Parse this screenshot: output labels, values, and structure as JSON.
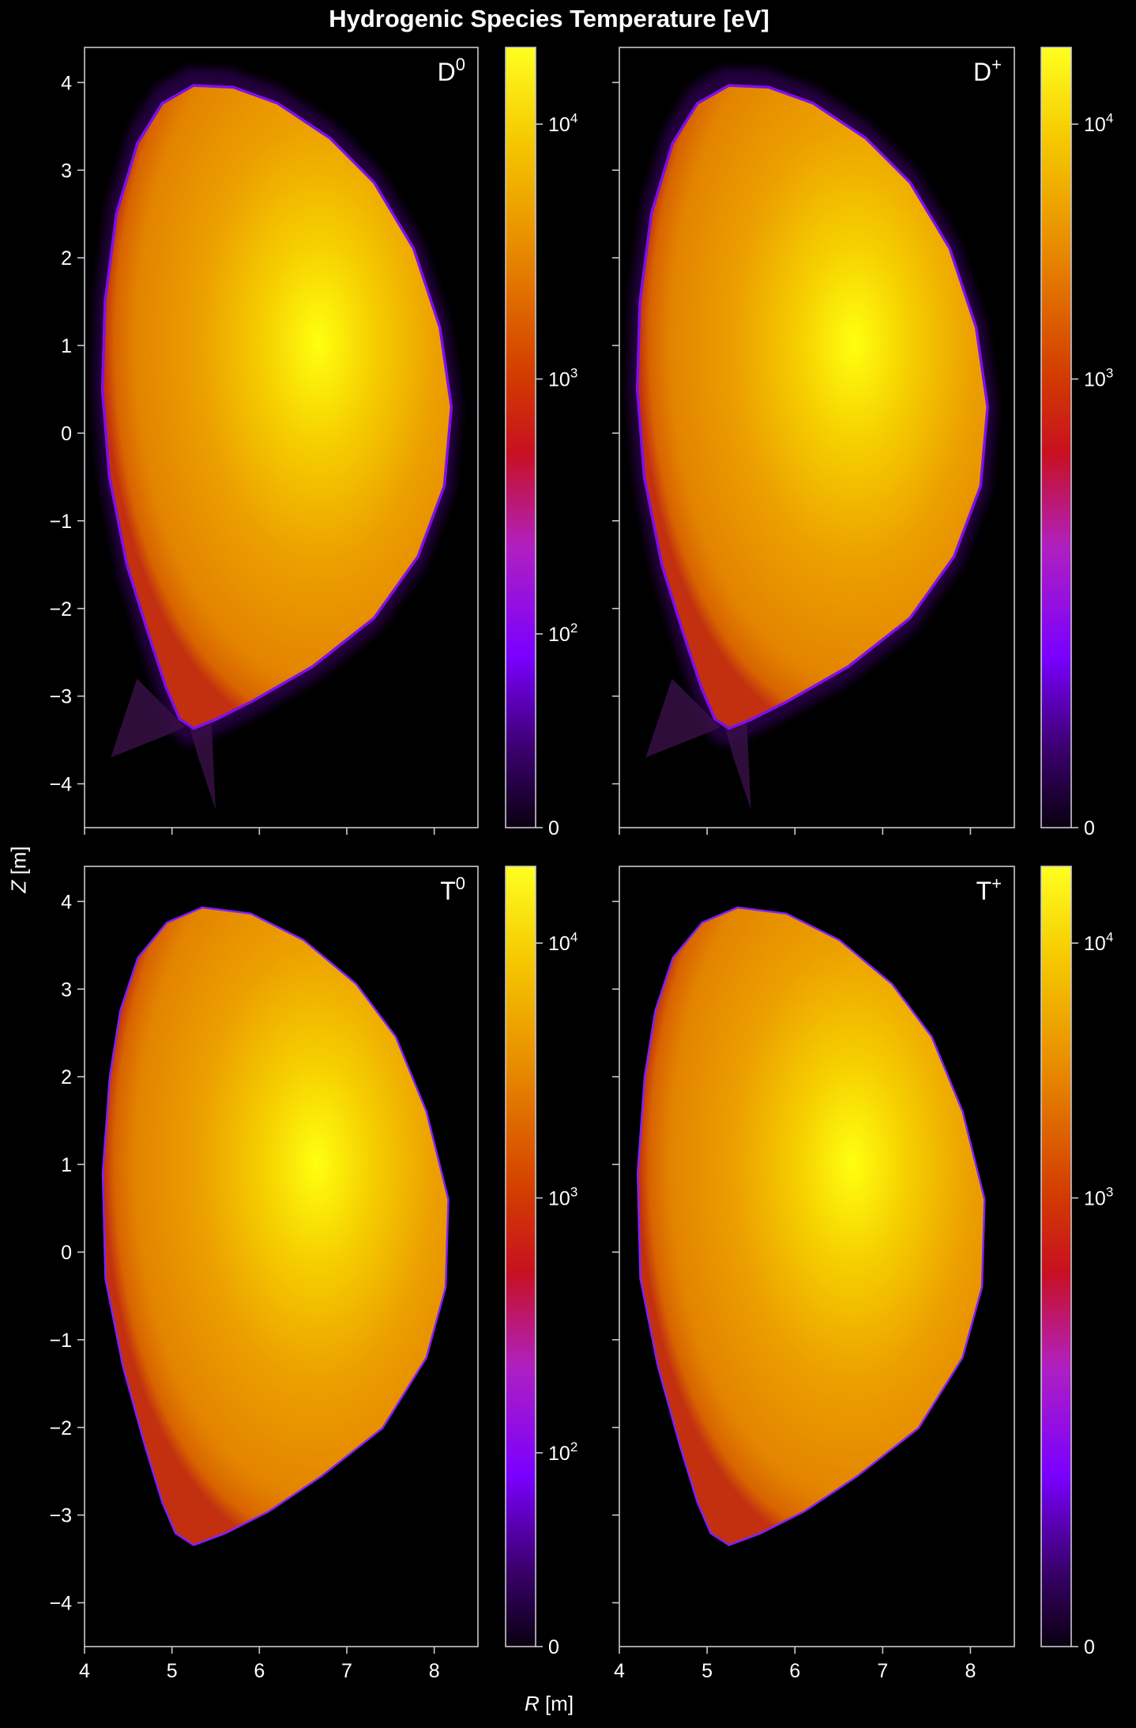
{
  "figure_title": "Hydrogenic Species Temperature [eV]",
  "xlabel_sym": "R",
  "xlabel_unit": "[m]",
  "ylabel_sym": "Z",
  "ylabel_unit": "[m]",
  "colors": {
    "background": "#000000",
    "axes": "#c8c8d0",
    "text": "#ffffff"
  },
  "colormap": "gnuplot-like: black → purple → magenta → red → orange → yellow",
  "chart_data": [
    {
      "type": "heatmap",
      "species": "D",
      "charge": "0",
      "xlim": [
        4.0,
        8.5
      ],
      "ylim": [
        -4.5,
        4.4
      ],
      "xticks": [
        4,
        5,
        6,
        7,
        8
      ],
      "yticks": [
        -4,
        -3,
        -2,
        -1,
        0,
        1,
        2,
        3,
        4
      ],
      "colorbar": {
        "scale": "symlog",
        "max": 20000,
        "ticks": [
          {
            "value": 0,
            "label": "0"
          },
          {
            "value": 100,
            "label": "10",
            "sup": "2"
          },
          {
            "value": 1000,
            "label": "10",
            "sup": "3"
          },
          {
            "value": 10000,
            "label": "10",
            "sup": "4"
          }
        ]
      },
      "core_peak_temperature": 20000,
      "core_center": [
        6.4,
        0.6
      ],
      "edge_region": "scrape-off layer and divertor legs shown (purple, ~10²–10³ eV)",
      "boundary": [
        [
          5.25,
          3.95
        ],
        [
          5.7,
          3.93
        ],
        [
          6.2,
          3.75
        ],
        [
          6.8,
          3.35
        ],
        [
          7.3,
          2.85
        ],
        [
          7.75,
          2.1
        ],
        [
          8.05,
          1.2
        ],
        [
          8.18,
          0.3
        ],
        [
          8.1,
          -0.6
        ],
        [
          7.8,
          -1.4
        ],
        [
          7.3,
          -2.1
        ],
        [
          6.6,
          -2.65
        ],
        [
          5.9,
          -3.05
        ],
        [
          5.5,
          -3.25
        ],
        [
          5.25,
          -3.35
        ],
        [
          5.1,
          -3.25
        ],
        [
          4.95,
          -2.9
        ],
        [
          4.75,
          -2.3
        ],
        [
          4.5,
          -1.5
        ],
        [
          4.3,
          -0.5
        ],
        [
          4.22,
          0.5
        ],
        [
          4.25,
          1.5
        ],
        [
          4.38,
          2.5
        ],
        [
          4.62,
          3.3
        ],
        [
          4.9,
          3.75
        ]
      ],
      "divertor_legs": [
        [
          [
            4.6,
            -2.8
          ],
          [
            5.15,
            -3.35
          ],
          [
            5.05,
            -3.4
          ],
          [
            4.3,
            -3.7
          ]
        ],
        [
          [
            5.2,
            -3.35
          ],
          [
            5.45,
            -3.25
          ],
          [
            5.5,
            -4.3
          ],
          [
            5.3,
            -3.7
          ]
        ]
      ]
    },
    {
      "type": "heatmap",
      "species": "D",
      "charge": "+",
      "xlim": [
        4.0,
        8.5
      ],
      "ylim": [
        -4.5,
        4.4
      ],
      "xticks": [
        4,
        5,
        6,
        7,
        8
      ],
      "yticks": [
        -4,
        -3,
        -2,
        -1,
        0,
        1,
        2,
        3,
        4
      ],
      "colorbar": {
        "scale": "symlog",
        "max": 20000,
        "ticks": [
          {
            "value": 0,
            "label": "0"
          },
          {
            "value": 1000,
            "label": "10",
            "sup": "3"
          },
          {
            "value": 10000,
            "label": "10",
            "sup": "4"
          }
        ]
      },
      "core_peak_temperature": 20000,
      "core_center": [
        6.4,
        0.6
      ],
      "edge_region": "scrape-off layer and divertor legs shown (purple, ~10²–10³ eV)",
      "boundary": [
        [
          5.25,
          3.95
        ],
        [
          5.7,
          3.93
        ],
        [
          6.2,
          3.75
        ],
        [
          6.8,
          3.35
        ],
        [
          7.3,
          2.85
        ],
        [
          7.75,
          2.1
        ],
        [
          8.05,
          1.2
        ],
        [
          8.18,
          0.3
        ],
        [
          8.1,
          -0.6
        ],
        [
          7.8,
          -1.4
        ],
        [
          7.3,
          -2.1
        ],
        [
          6.6,
          -2.65
        ],
        [
          5.9,
          -3.05
        ],
        [
          5.5,
          -3.25
        ],
        [
          5.25,
          -3.35
        ],
        [
          5.1,
          -3.25
        ],
        [
          4.95,
          -2.9
        ],
        [
          4.75,
          -2.3
        ],
        [
          4.5,
          -1.5
        ],
        [
          4.3,
          -0.5
        ],
        [
          4.22,
          0.5
        ],
        [
          4.25,
          1.5
        ],
        [
          4.38,
          2.5
        ],
        [
          4.62,
          3.3
        ],
        [
          4.9,
          3.75
        ]
      ],
      "divertor_legs": [
        [
          [
            4.6,
            -2.8
          ],
          [
            5.15,
            -3.35
          ],
          [
            5.05,
            -3.4
          ],
          [
            4.3,
            -3.7
          ]
        ],
        [
          [
            5.2,
            -3.35
          ],
          [
            5.45,
            -3.25
          ],
          [
            5.5,
            -4.3
          ],
          [
            5.3,
            -3.7
          ]
        ]
      ]
    },
    {
      "type": "heatmap",
      "species": "T",
      "charge": "0",
      "xlim": [
        4.0,
        8.5
      ],
      "ylim": [
        -4.5,
        4.4
      ],
      "xticks": [
        4,
        5,
        6,
        7,
        8
      ],
      "yticks": [
        -4,
        -3,
        -2,
        -1,
        0,
        1,
        2,
        3,
        4
      ],
      "colorbar": {
        "scale": "symlog",
        "max": 20000,
        "ticks": [
          {
            "value": 0,
            "label": "0"
          },
          {
            "value": 100,
            "label": "10",
            "sup": "2"
          },
          {
            "value": 1000,
            "label": "10",
            "sup": "3"
          },
          {
            "value": 10000,
            "label": "10",
            "sup": "4"
          }
        ]
      },
      "core_peak_temperature": 20000,
      "core_center": [
        6.4,
        0.6
      ],
      "edge_region": "core plasma only, thin purple edge",
      "boundary": [
        [
          5.35,
          3.92
        ],
        [
          5.9,
          3.85
        ],
        [
          6.5,
          3.55
        ],
        [
          7.1,
          3.05
        ],
        [
          7.55,
          2.45
        ],
        [
          7.9,
          1.6
        ],
        [
          8.15,
          0.6
        ],
        [
          8.12,
          -0.4
        ],
        [
          7.9,
          -1.2
        ],
        [
          7.4,
          -2.0
        ],
        [
          6.7,
          -2.55
        ],
        [
          6.1,
          -2.95
        ],
        [
          5.6,
          -3.2
        ],
        [
          5.25,
          -3.33
        ],
        [
          5.05,
          -3.2
        ],
        [
          4.9,
          -2.85
        ],
        [
          4.7,
          -2.2
        ],
        [
          4.45,
          -1.3
        ],
        [
          4.25,
          -0.3
        ],
        [
          4.22,
          0.9
        ],
        [
          4.3,
          2.0
        ],
        [
          4.42,
          2.75
        ],
        [
          4.62,
          3.35
        ],
        [
          4.95,
          3.75
        ]
      ]
    },
    {
      "type": "heatmap",
      "species": "T",
      "charge": "+",
      "xlim": [
        4.0,
        8.5
      ],
      "ylim": [
        -4.5,
        4.4
      ],
      "xticks": [
        4,
        5,
        6,
        7,
        8
      ],
      "yticks": [
        -4,
        -3,
        -2,
        -1,
        0,
        1,
        2,
        3,
        4
      ],
      "colorbar": {
        "scale": "symlog",
        "max": 20000,
        "ticks": [
          {
            "value": 0,
            "label": "0"
          },
          {
            "value": 1000,
            "label": "10",
            "sup": "3"
          },
          {
            "value": 10000,
            "label": "10",
            "sup": "4"
          }
        ]
      },
      "core_peak_temperature": 20000,
      "core_center": [
        6.4,
        0.6
      ],
      "edge_region": "core plasma only, thin purple edge",
      "boundary": [
        [
          5.35,
          3.92
        ],
        [
          5.9,
          3.85
        ],
        [
          6.5,
          3.55
        ],
        [
          7.1,
          3.05
        ],
        [
          7.55,
          2.45
        ],
        [
          7.9,
          1.6
        ],
        [
          8.15,
          0.6
        ],
        [
          8.12,
          -0.4
        ],
        [
          7.9,
          -1.2
        ],
        [
          7.4,
          -2.0
        ],
        [
          6.7,
          -2.55
        ],
        [
          6.1,
          -2.95
        ],
        [
          5.6,
          -3.2
        ],
        [
          5.25,
          -3.33
        ],
        [
          5.05,
          -3.2
        ],
        [
          4.9,
          -2.85
        ],
        [
          4.7,
          -2.2
        ],
        [
          4.45,
          -1.3
        ],
        [
          4.25,
          -0.3
        ],
        [
          4.22,
          0.9
        ],
        [
          4.3,
          2.0
        ],
        [
          4.42,
          2.75
        ],
        [
          4.62,
          3.35
        ],
        [
          4.95,
          3.75
        ]
      ]
    }
  ]
}
